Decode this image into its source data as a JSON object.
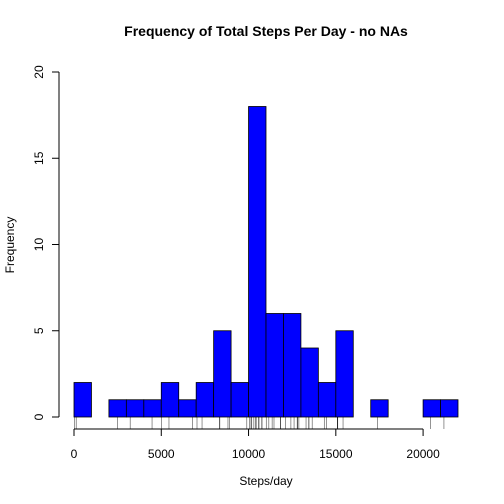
{
  "chart_data": {
    "type": "bar",
    "title": "Frequency of Total Steps Per Day - no NAs",
    "xlabel": "Steps/day",
    "ylabel": "Frequency",
    "bin_width": 1000,
    "bins": [
      {
        "start": 0,
        "end": 1000,
        "count": 2
      },
      {
        "start": 1000,
        "end": 2000,
        "count": 0
      },
      {
        "start": 2000,
        "end": 3000,
        "count": 1
      },
      {
        "start": 3000,
        "end": 4000,
        "count": 1
      },
      {
        "start": 4000,
        "end": 5000,
        "count": 1
      },
      {
        "start": 5000,
        "end": 6000,
        "count": 2
      },
      {
        "start": 6000,
        "end": 7000,
        "count": 1
      },
      {
        "start": 7000,
        "end": 8000,
        "count": 2
      },
      {
        "start": 8000,
        "end": 9000,
        "count": 5
      },
      {
        "start": 9000,
        "end": 10000,
        "count": 2
      },
      {
        "start": 10000,
        "end": 11000,
        "count": 18
      },
      {
        "start": 11000,
        "end": 12000,
        "count": 6
      },
      {
        "start": 12000,
        "end": 13000,
        "count": 6
      },
      {
        "start": 13000,
        "end": 14000,
        "count": 4
      },
      {
        "start": 14000,
        "end": 15000,
        "count": 2
      },
      {
        "start": 15000,
        "end": 16000,
        "count": 5
      },
      {
        "start": 16000,
        "end": 17000,
        "count": 0
      },
      {
        "start": 17000,
        "end": 18000,
        "count": 1
      },
      {
        "start": 18000,
        "end": 19000,
        "count": 0
      },
      {
        "start": 19000,
        "end": 20000,
        "count": 0
      },
      {
        "start": 20000,
        "end": 21000,
        "count": 1
      },
      {
        "start": 21000,
        "end": 22000,
        "count": 1
      }
    ],
    "rug_values": [
      41,
      126,
      2492,
      3219,
      4472,
      5018,
      5441,
      6778,
      7047,
      7336,
      8334,
      8355,
      8821,
      8918,
      9900,
      10056,
      10139,
      10183,
      10304,
      10395,
      10439,
      10571,
      10600,
      10765,
      10766,
      11015,
      11162,
      11352,
      11458,
      11829,
      11834,
      12116,
      12426,
      12608,
      12787,
      12811,
      12883,
      13294,
      13452,
      13460,
      13646,
      14339,
      14478,
      15084,
      15098,
      15110,
      15414,
      17382,
      20427,
      21194
    ],
    "xlim": [
      0,
      22000
    ],
    "ylim": [
      0,
      20
    ],
    "x_ticks": [
      0,
      5000,
      10000,
      15000,
      20000
    ],
    "y_ticks": [
      0,
      5,
      10,
      15,
      20
    ],
    "x_tick_labels": [
      "0",
      "5000",
      "10000",
      "15000",
      "20000"
    ],
    "y_tick_labels": [
      "0",
      "5",
      "10",
      "15",
      "20"
    ],
    "colors": {
      "bar_fill": "#0000ff",
      "bar_stroke": "#000000",
      "axis": "#000000",
      "rug": "#000000"
    }
  }
}
